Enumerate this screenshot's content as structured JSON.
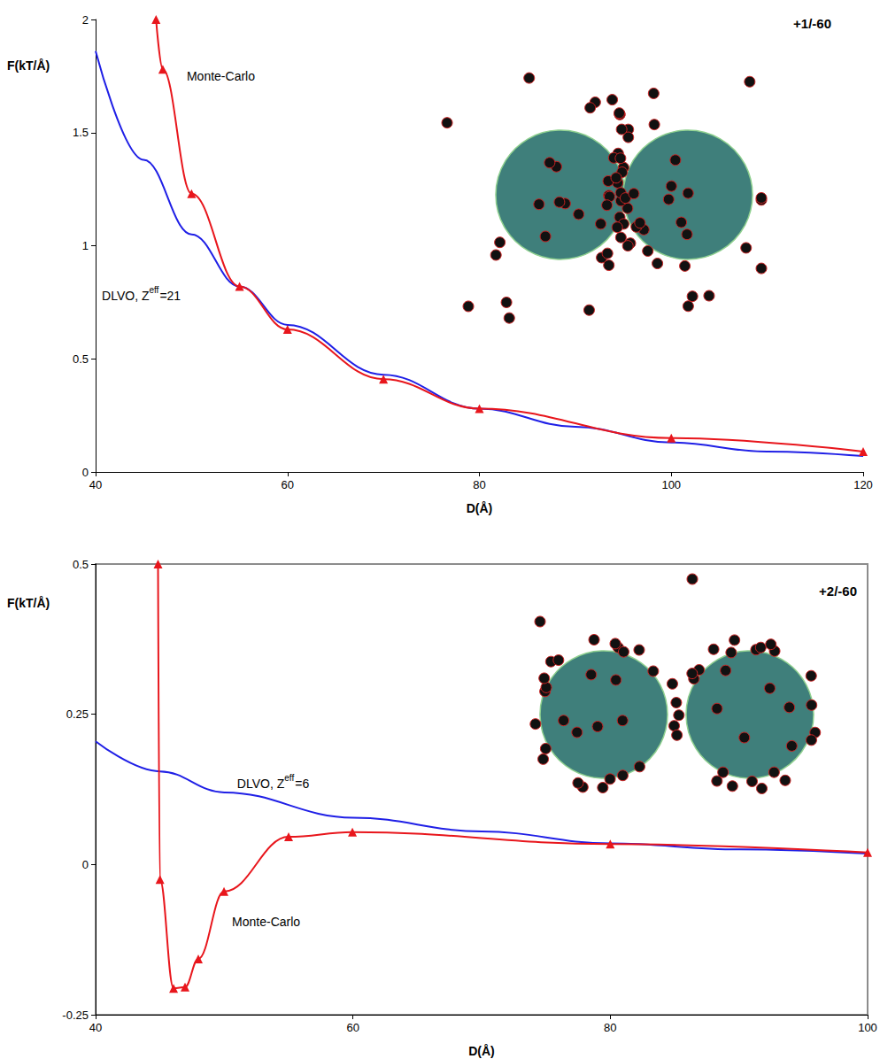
{
  "chart_data": [
    {
      "type": "line",
      "title": "+1/-60",
      "x_title": "D(Å)",
      "y_title": "F(kT/Å)",
      "xlim": [
        40,
        120
      ],
      "xticks": [
        40,
        60,
        80,
        100,
        120
      ],
      "ylim": [
        0,
        2
      ],
      "yticks": [
        0,
        0.5,
        1,
        1.5,
        2
      ],
      "series": [
        {
          "name": "Monte-Carlo",
          "color": "#e8161c",
          "marker": "triangle",
          "x": [
            46.3,
            47,
            50,
            55,
            60,
            70,
            80,
            100,
            120
          ],
          "values": [
            2.0,
            1.78,
            1.23,
            0.82,
            0.63,
            0.41,
            0.28,
            0.15,
            0.09
          ]
        },
        {
          "name": "DLVO, Zeff=21",
          "superscript": "eff",
          "color": "#1f1fe6",
          "marker": "none",
          "x": [
            40,
            45,
            50,
            55,
            60,
            70,
            80,
            90,
            100,
            110,
            120
          ],
          "values": [
            1.86,
            1.38,
            1.05,
            0.82,
            0.65,
            0.43,
            0.28,
            0.2,
            0.13,
            0.09,
            0.07
          ]
        }
      ]
    },
    {
      "type": "line",
      "title": "+2/-60",
      "x_title": "D(Å)",
      "y_title": "F(kT/Å)",
      "xlim": [
        40,
        100
      ],
      "xticks": [
        40,
        60,
        80,
        100
      ],
      "ylim": [
        -0.25,
        0.5
      ],
      "yticks": [
        -0.25,
        0,
        0.25,
        0.5
      ],
      "series": [
        {
          "name": "Monte-Carlo",
          "color": "#e8161c",
          "marker": "triangle",
          "x": [
            44.85,
            45,
            46.06,
            46.95,
            47.98,
            49.98,
            55,
            59.96,
            80,
            100
          ],
          "values": [
            0.5,
            -0.025,
            -0.206,
            -0.204,
            -0.157,
            -0.045,
            0.046,
            0.054,
            0.034,
            0.02
          ]
        },
        {
          "name": "DLVO, Zeff=6",
          "superscript": "eff",
          "color": "#1f1fe6",
          "marker": "none",
          "x": [
            40,
            45,
            50,
            60,
            70,
            80,
            90,
            100
          ],
          "values": [
            0.205,
            0.155,
            0.12,
            0.078,
            0.055,
            0.035,
            0.025,
            0.018
          ]
        }
      ]
    }
  ]
}
